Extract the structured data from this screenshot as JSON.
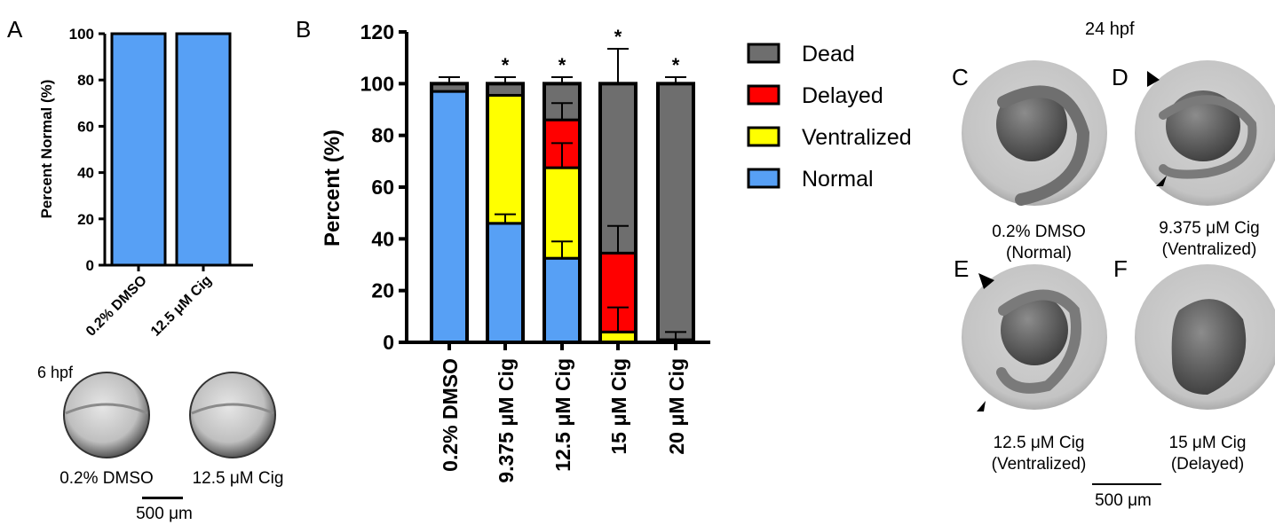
{
  "panel_labels": {
    "a": "A",
    "b": "B",
    "c": "C",
    "d": "D",
    "e": "E",
    "f": "F"
  },
  "colors": {
    "normal": "#57a0f5",
    "ventralized": "#ffff00",
    "delayed": "#ff0000",
    "dead": "#6e6e6e",
    "axis": "#000000"
  },
  "panel_a_images": {
    "stage": "6 hpf",
    "captions": [
      "0.2% DMSO",
      "12.5 μM Cig"
    ],
    "scale_bar": "500 μm"
  },
  "panel_cf": {
    "stage": "24 hpf",
    "scale_bar": "500 μm",
    "embryos": [
      {
        "letter": "C",
        "line1": "0.2% DMSO",
        "line2": "(Normal)"
      },
      {
        "letter": "D",
        "line1": "9.375 μM Cig",
        "line2": "(Ventralized)"
      },
      {
        "letter": "E",
        "line1": "12.5 μM Cig",
        "line2": "(Ventralized)"
      },
      {
        "letter": "F",
        "line1": "15 μM Cig",
        "line2": "(Delayed)"
      }
    ]
  },
  "chart_data": [
    {
      "panel": "A",
      "type": "bar",
      "categories": [
        "0.2% DMSO",
        "12.5 μM Cig"
      ],
      "values": [
        100,
        100
      ],
      "xlabel": "",
      "ylabel": "Percent Normal (%)",
      "ylim": [
        0,
        100
      ],
      "yticks": [
        0,
        20,
        40,
        60,
        80,
        100
      ],
      "grid": false
    },
    {
      "panel": "B",
      "type": "bar",
      "stacked": true,
      "categories": [
        "0.2% DMSO",
        "9.375 μM Cig",
        "12.5 μM Cig",
        "15 μM Cig",
        "20 μM Cig"
      ],
      "series": [
        {
          "name": "Normal",
          "values": [
            97,
            46,
            32.5,
            0,
            0
          ],
          "errors": [
            null,
            3.5,
            6.5,
            null,
            null
          ]
        },
        {
          "name": "Ventralized",
          "values": [
            0,
            49.5,
            35,
            4,
            0
          ],
          "errors": [
            null,
            null,
            9.5,
            9.5,
            null
          ]
        },
        {
          "name": "Delayed",
          "values": [
            0,
            0,
            18.5,
            30.5,
            1
          ],
          "errors": [
            null,
            null,
            6.5,
            10.5,
            3
          ]
        },
        {
          "name": "Dead",
          "values": [
            3,
            4.5,
            14,
            65.5,
            99
          ],
          "errors": [
            2.5,
            2.5,
            2.5,
            13.5,
            2.5
          ]
        }
      ],
      "significance": [
        "",
        "*",
        "*",
        "*",
        "*"
      ],
      "xlabel": "",
      "ylabel": "Percent (%)",
      "ylim": [
        0,
        120
      ],
      "yticks": [
        0,
        20,
        40,
        60,
        80,
        100,
        120
      ],
      "legend_position": "right",
      "legend_order": [
        "Dead",
        "Delayed",
        "Ventralized",
        "Normal"
      ],
      "grid": false
    }
  ]
}
